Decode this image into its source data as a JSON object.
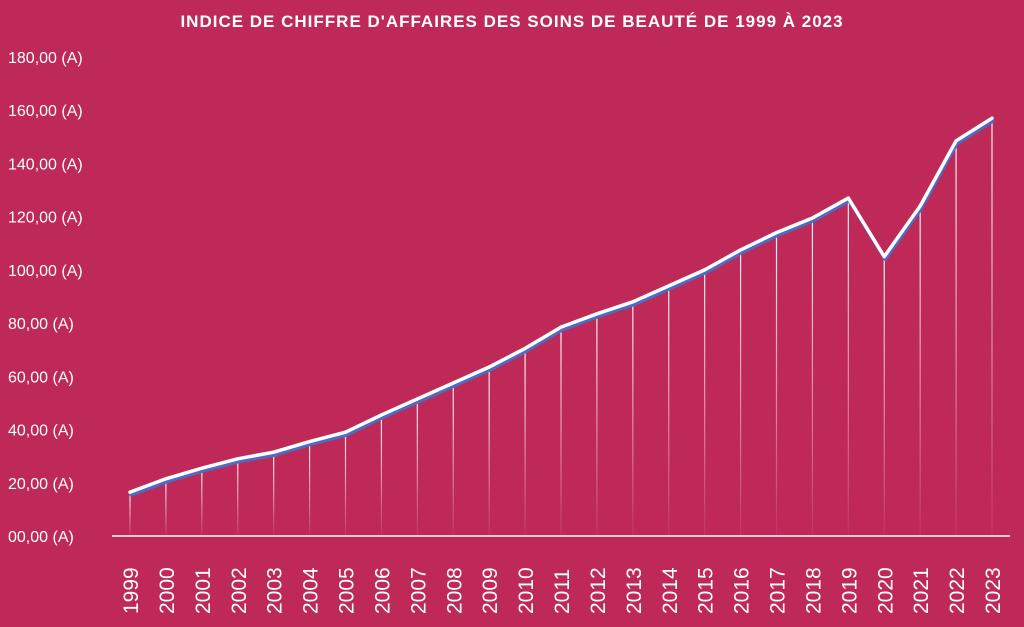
{
  "chart_data": {
    "type": "line",
    "title": "INDICE DE CHIFFRE D'AFFAIRES DES SOINS DE BEAUTÉ DE 1999 À 2023",
    "xlabel": "",
    "ylabel": "",
    "ylim": [
      0,
      180
    ],
    "y_ticks": [
      "00,00 (A)",
      "20,00 (A)",
      "40,00 (A)",
      "60,00 (A)",
      "80,00 (A)",
      "100,00 (A)",
      "120,00 (A)",
      "140,00 (A)",
      "160,00 (A)",
      "180,00 (A)"
    ],
    "categories": [
      "1999",
      "2000",
      "2001",
      "2002",
      "2003",
      "2004",
      "2005",
      "2006",
      "2007",
      "2008",
      "2009",
      "2010",
      "2011",
      "2012",
      "2013",
      "2014",
      "2015",
      "2016",
      "2017",
      "2018",
      "2019",
      "2020",
      "2021",
      "2022",
      "2023"
    ],
    "series": [
      {
        "values": [
          16.5,
          21.5,
          25.5,
          29,
          31.5,
          35.5,
          39,
          45.5,
          51.5,
          57.5,
          63.5,
          70.5,
          78.5,
          83.5,
          88,
          94,
          100,
          107.5,
          114,
          119.5,
          127,
          105,
          124,
          148.5,
          157
        ]
      }
    ],
    "grid": false,
    "legend": "none",
    "colors": {
      "background": "#BE2958",
      "line": "#ffffff",
      "line_shadow": "#4a6cc4",
      "drop_lines": "#ffffff",
      "text": "#ffffff"
    }
  }
}
